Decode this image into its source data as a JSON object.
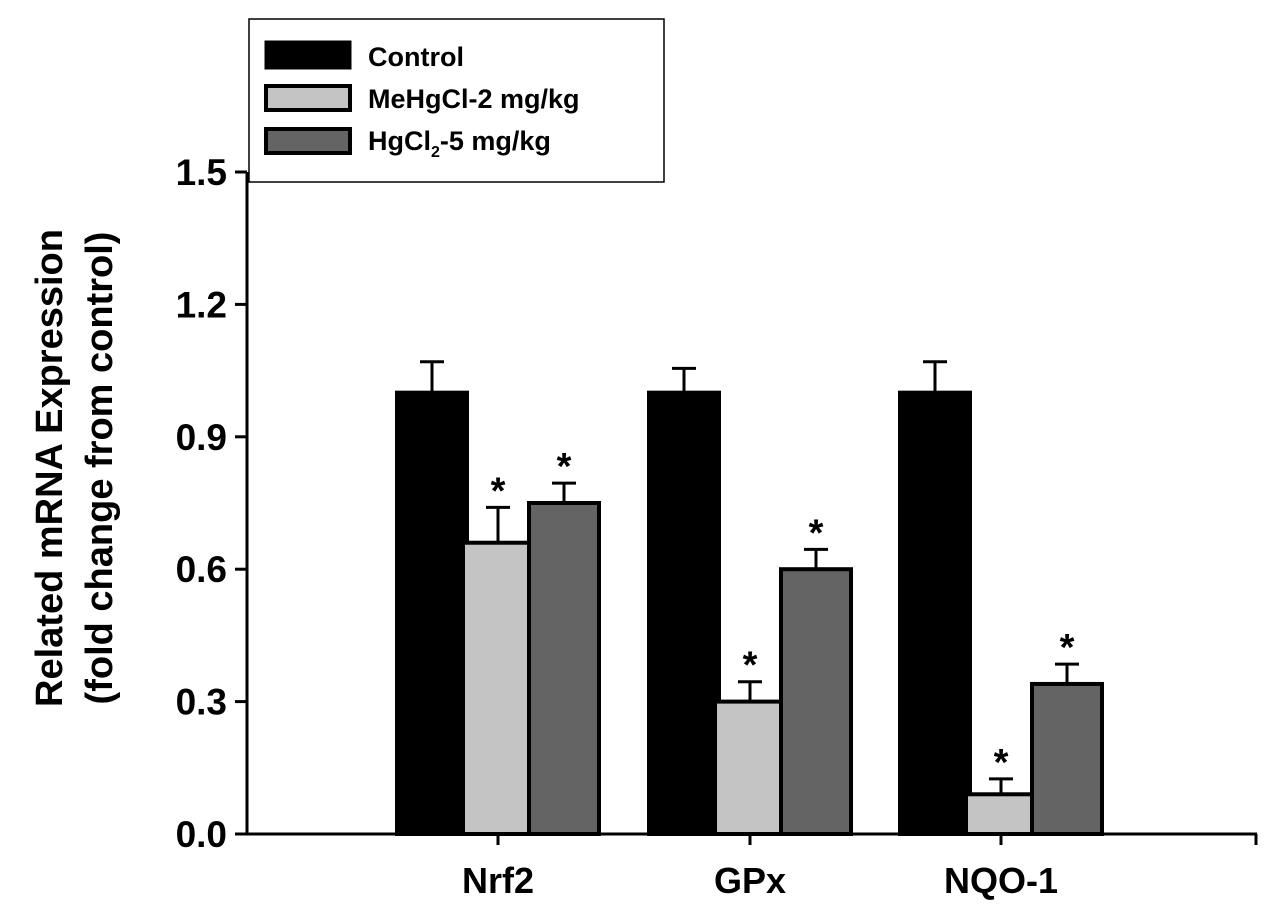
{
  "chart_data": {
    "type": "bar",
    "title": "",
    "xlabel": "",
    "ylabel": "Related mRNA Expression",
    "ylabel2": "(fold change from control)",
    "ylim": [
      0,
      1.5
    ],
    "yticks": [
      "0.0",
      "0.3",
      "0.6",
      "0.9",
      "1.2",
      "1.5"
    ],
    "categories": [
      "Nrf2",
      "GPx",
      "NQO-1"
    ],
    "legend_position": "top-left",
    "significance_marker": "*",
    "series": [
      {
        "name": "Control",
        "color": "#000000",
        "values": [
          1.0,
          1.0,
          1.0
        ],
        "errors": [
          0.07,
          0.055,
          0.07
        ],
        "significant": [
          false,
          false,
          false
        ]
      },
      {
        "name": "MeHgCl-2 mg/kg",
        "color": "#c4c4c4",
        "values": [
          0.66,
          0.3,
          0.09
        ],
        "errors": [
          0.08,
          0.045,
          0.035
        ],
        "significant": [
          true,
          true,
          true
        ]
      },
      {
        "name": "HgCl2-5 mg/kg",
        "color": "#646464",
        "values": [
          0.75,
          0.6,
          0.34
        ],
        "errors": [
          0.045,
          0.045,
          0.045
        ],
        "significant": [
          true,
          true,
          true
        ]
      }
    ],
    "legend": {
      "entry1": "Control",
      "entry2": "MeHgCl-2 mg/kg",
      "entry3_prefix": "HgCl",
      "entry3_subscript": "2",
      "entry3_suffix": "-5 mg/kg"
    }
  }
}
